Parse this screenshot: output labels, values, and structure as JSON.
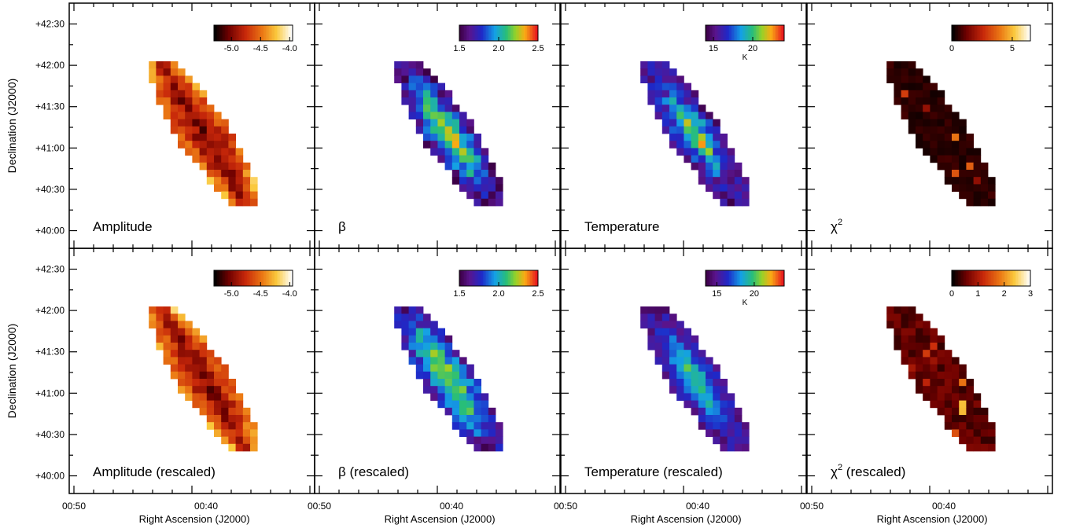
{
  "figure": {
    "ylabel": "Declination (J2000)",
    "xlabel": "Right Ascension (J2000)",
    "y_ticks": [
      "+42:30",
      "+42:00",
      "+41:30",
      "+41:00",
      "+40:30",
      "+40:00"
    ],
    "x_ticks": [
      "00:50",
      "00:40"
    ]
  },
  "chart_data": [
    {
      "type": "heatmap",
      "panel": "top-1",
      "title": "Amplitude",
      "colormap": "heat",
      "colorbar": {
        "ticks": [
          "-5.0",
          "-4.5",
          "-4.0"
        ],
        "min": -5.3,
        "max": -3.95
      },
      "map": "amp",
      "center_lo": -5.2,
      "edge_hi": -4.15,
      "noise": 0.18,
      "seed": 11
    },
    {
      "type": "heatmap",
      "panel": "top-2",
      "title": "β",
      "colormap": "rainbow",
      "colorbar": {
        "ticks": [
          "1.5",
          "2.0",
          "2.5"
        ],
        "min": 1.5,
        "max": 2.5
      },
      "map": "beta",
      "base": 1.55,
      "peak": 2.35,
      "noise": 0.16,
      "seed": 23
    },
    {
      "type": "heatmap",
      "panel": "top-3",
      "title": "Temperature",
      "colormap": "rainbow",
      "colorbar": {
        "ticks": [
          "15",
          "20"
        ],
        "unit": "K",
        "min": 14,
        "max": 24
      },
      "map": "temp",
      "base": 15.2,
      "peak": 23.0,
      "noise": 1.4,
      "seed": 37
    },
    {
      "type": "heatmap",
      "panel": "top-4",
      "title": "χ",
      "title_sup": "2",
      "colormap": "heat",
      "colorbar": {
        "ticks": [
          "0",
          "5"
        ],
        "min": 0,
        "max": 6.5
      },
      "map": "chi",
      "base": 0.2,
      "spike": 4.0,
      "noise": 0.9,
      "seed": 41
    },
    {
      "type": "heatmap",
      "panel": "bot-1",
      "title": "Amplitude (rescaled)",
      "colormap": "heat",
      "colorbar": {
        "ticks": [
          "-5.0",
          "-4.5",
          "-4.0"
        ],
        "min": -5.3,
        "max": -3.95
      },
      "map": "amp",
      "center_lo": -5.2,
      "edge_hi": -4.1,
      "noise": 0.16,
      "seed": 53
    },
    {
      "type": "heatmap",
      "panel": "bot-2",
      "title": "β (rescaled)",
      "colormap": "rainbow",
      "colorbar": {
        "ticks": [
          "1.5",
          "2.0",
          "2.5"
        ],
        "min": 1.5,
        "max": 2.5
      },
      "map": "beta",
      "base": 1.65,
      "peak": 2.3,
      "noise": 0.14,
      "seed": 61
    },
    {
      "type": "heatmap",
      "panel": "bot-3",
      "title": "Temperature (rescaled)",
      "colormap": "rainbow",
      "colorbar": {
        "ticks": [
          "15",
          "20"
        ],
        "unit": "K",
        "min": 13.5,
        "max": 24
      },
      "map": "temp",
      "base": 15.0,
      "peak": 21.5,
      "noise": 1.0,
      "seed": 71
    },
    {
      "type": "heatmap",
      "panel": "bot-4",
      "title": "χ",
      "title_sup": "2",
      "title_suffix": " (rescaled)",
      "colormap": "heat",
      "colorbar": {
        "ticks": [
          "0",
          "1",
          "2",
          "3"
        ],
        "min": 0,
        "max": 3
      },
      "map": "chi",
      "base": 0.25,
      "spike": 2.2,
      "noise": 0.7,
      "seed": 83
    }
  ]
}
